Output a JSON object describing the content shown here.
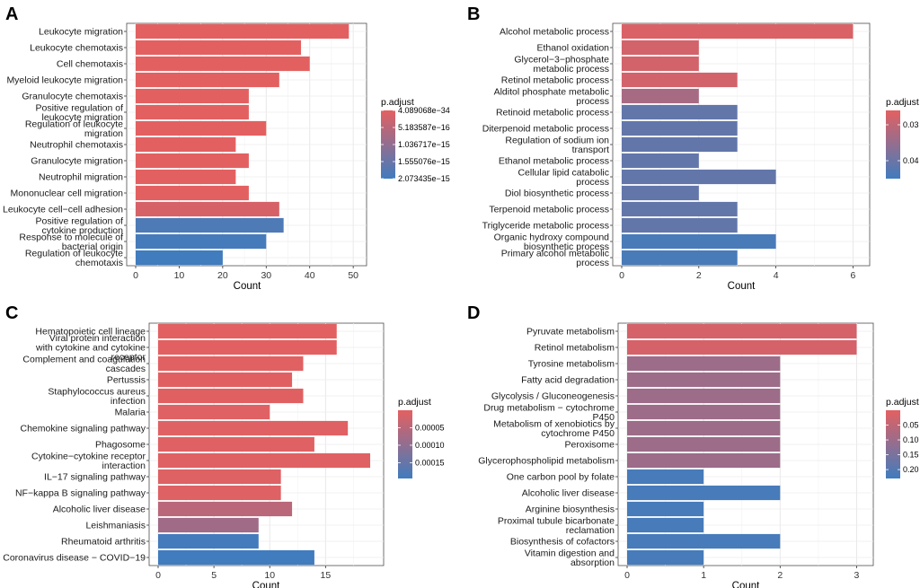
{
  "legend_title": "p.adjust",
  "x_title": "Count",
  "chart_data": [
    {
      "panel": "A",
      "type": "bar",
      "orientation": "horizontal",
      "xlabel": "Count",
      "xlim": [
        0,
        51
      ],
      "xticks": [
        0,
        10,
        20,
        30,
        40,
        50
      ],
      "categories": [
        [
          "Leukocyte migration"
        ],
        [
          "Leukocyte chemotaxis"
        ],
        [
          "Cell chemotaxis"
        ],
        [
          "Myeloid leukocyte migration"
        ],
        [
          "Granulocyte chemotaxis"
        ],
        [
          "Positive regulation of",
          "leukocyte migration"
        ],
        [
          "Regulation of leukocyte",
          "migration"
        ],
        [
          "Neutrophil chemotaxis"
        ],
        [
          "Granulocyte migration"
        ],
        [
          "Neutrophil migration"
        ],
        [
          "Mononuclear cell migration"
        ],
        [
          "Leukocyte cell−cell adhesion"
        ],
        [
          "Positive regulation of",
          "cytokine production"
        ],
        [
          "Response to molecule of",
          "bacterial origin"
        ],
        [
          "Regulation of leukocyte",
          "chemotaxis"
        ]
      ],
      "values": [
        49,
        38,
        40,
        33,
        26,
        26,
        30,
        23,
        26,
        23,
        26,
        33,
        34,
        30,
        20
      ],
      "padj": [
        4.1e-34,
        4.5e-34,
        4.5e-34,
        4.5e-34,
        4.7e-34,
        4.7e-34,
        4.7e-34,
        4.8e-34,
        4.8e-34,
        4.8e-34,
        4.8e-34,
        1.6e-16,
        1.9e-15,
        2e-15,
        2.07e-15
      ],
      "legend_range": [
        4.089068e-34,
        2.073435e-15
      ],
      "legend_ticks": [
        4.089068e-34,
        5.183587e-16,
        1.036717e-15,
        1.555076e-15,
        2.073435e-15
      ],
      "legend_labels": [
        "4.089068e−34",
        "5.183587e−16",
        "1.036717e−15",
        "1.555076e−15",
        "2.073435e−15"
      ]
    },
    {
      "panel": "B",
      "type": "bar",
      "orientation": "horizontal",
      "xlabel": "Count",
      "xlim": [
        0,
        6.2
      ],
      "xticks": [
        0,
        2,
        4,
        6
      ],
      "categories": [
        [
          "Alcohol metabolic process"
        ],
        [
          "Ethanol oxidation"
        ],
        [
          "Glycerol−3−phosphate",
          "metabolic process"
        ],
        [
          "Retinol metabolic process"
        ],
        [
          "Alditol phosphate metabolic",
          "process"
        ],
        [
          "Retinoid metabolic process"
        ],
        [
          "Diterpenoid metabolic process"
        ],
        [
          "Regulation of sodium ion",
          "transport"
        ],
        [
          "Ethanol metabolic process"
        ],
        [
          "Cellular lipid catabolic",
          "process"
        ],
        [
          "Diol biosynthetic process"
        ],
        [
          "Terpenoid metabolic process"
        ],
        [
          "Triglyceride metabolic process"
        ],
        [
          "Organic hydroxy compound",
          "biosynthetic process"
        ],
        [
          "Primary alcohol metabolic",
          "process"
        ]
      ],
      "values": [
        6,
        2,
        2,
        3,
        2,
        3,
        3,
        3,
        2,
        4,
        2,
        3,
        3,
        4,
        3
      ],
      "padj": [
        0.027,
        0.028,
        0.028,
        0.028,
        0.033,
        0.041,
        0.041,
        0.041,
        0.041,
        0.041,
        0.041,
        0.041,
        0.041,
        0.044,
        0.044
      ],
      "legend_range": [
        0.026,
        0.045
      ],
      "legend_ticks": [
        0.03,
        0.04
      ],
      "legend_labels": [
        "0.03",
        "0.04"
      ]
    },
    {
      "panel": "C",
      "type": "bar",
      "orientation": "horizontal",
      "xlabel": "Count",
      "xlim": [
        0,
        19.4
      ],
      "xticks": [
        0,
        5,
        10,
        15
      ],
      "categories": [
        [
          "Hematopoietic cell lineage"
        ],
        [
          "Viral protein interaction",
          "with cytokine and cytokine",
          "receptor"
        ],
        [
          "Complement and coagulation",
          "cascades"
        ],
        [
          "Pertussis"
        ],
        [
          "Staphylococcus aureus",
          "infection"
        ],
        [
          "Malaria"
        ],
        [
          "Chemokine signaling pathway"
        ],
        [
          "Phagosome"
        ],
        [
          "Cytokine−cytokine receptor",
          "interaction"
        ],
        [
          "IL−17 signaling pathway"
        ],
        [
          "NF−kappa B signaling pathway"
        ],
        [
          "Alcoholic liver disease"
        ],
        [
          "Leishmaniasis"
        ],
        [
          "Rheumatoid arthritis"
        ],
        [
          "Coronavirus disease − COVID−19"
        ]
      ],
      "values": [
        16,
        16,
        13,
        12,
        13,
        10,
        17,
        14,
        19,
        11,
        11,
        12,
        9,
        9,
        14
      ],
      "padj": [
        1e-06,
        1e-06,
        2e-06,
        3e-06,
        3e-06,
        4e-06,
        4e-06,
        4e-06,
        4e-06,
        6e-06,
        6e-06,
        5e-05,
        8e-05,
        0.00019,
        0.0002
      ],
      "legend_range": [
        0.0,
        0.000195
      ],
      "legend_ticks": [
        5e-05,
        0.0001,
        0.00015
      ],
      "legend_labels": [
        "0.00005",
        "0.00010",
        "0.00015"
      ]
    },
    {
      "panel": "D",
      "type": "bar",
      "orientation": "horizontal",
      "xlabel": "Count",
      "xlim": [
        0,
        3.1
      ],
      "xticks": [
        0,
        1,
        2,
        3
      ],
      "categories": [
        [
          "Pyruvate metabolism"
        ],
        [
          "Retinol metabolism"
        ],
        [
          "Tyrosine metabolism"
        ],
        [
          "Fatty acid degradation"
        ],
        [
          "Glycolysis / Gluconeogenesis"
        ],
        [
          "Drug metabolism − cytochrome",
          "P450"
        ],
        [
          "Metabolism of xenobiotics by",
          "cytochrome P450"
        ],
        [
          "Peroxisome"
        ],
        [
          "Glycerophospholipid metabolism"
        ],
        [
          "One carbon pool by folate"
        ],
        [
          "Alcoholic liver disease"
        ],
        [
          "Arginine biosynthesis"
        ],
        [
          "Proximal tubule bicarbonate",
          "reclamation"
        ],
        [
          "Biosynthesis of cofactors"
        ],
        [
          "Vitamin digestion and",
          "absorption"
        ]
      ],
      "values": [
        3,
        3,
        2,
        2,
        2,
        2,
        2,
        2,
        2,
        1,
        2,
        1,
        1,
        2,
        1
      ],
      "padj": [
        0.02,
        0.02,
        0.1,
        0.1,
        0.1,
        0.1,
        0.1,
        0.1,
        0.1,
        0.22,
        0.22,
        0.22,
        0.22,
        0.22,
        0.22
      ],
      "legend_range": [
        0.0,
        0.23
      ],
      "legend_ticks": [
        0.05,
        0.1,
        0.15,
        0.2
      ],
      "legend_labels": [
        "0.05",
        "0.10",
        "0.15",
        "0.20"
      ]
    }
  ]
}
